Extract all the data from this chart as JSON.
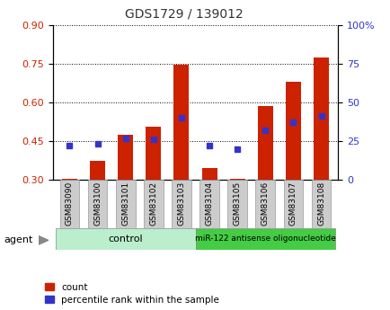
{
  "title": "GDS1729 / 139012",
  "categories": [
    "GSM83090",
    "GSM83100",
    "GSM83101",
    "GSM83102",
    "GSM83103",
    "GSM83104",
    "GSM83105",
    "GSM83106",
    "GSM83107",
    "GSM83108"
  ],
  "count_values": [
    0.305,
    0.375,
    0.475,
    0.505,
    0.745,
    0.345,
    0.305,
    0.585,
    0.68,
    0.775
  ],
  "percentile_values": [
    22,
    23,
    27,
    26,
    40,
    22,
    20,
    32,
    37,
    41
  ],
  "ylim_left": [
    0.3,
    0.9
  ],
  "ylim_right": [
    0,
    100
  ],
  "yticks_left": [
    0.3,
    0.45,
    0.6,
    0.75,
    0.9
  ],
  "yticks_right": [
    0,
    25,
    50,
    75,
    100
  ],
  "ytick_right_labels": [
    "0",
    "25",
    "50",
    "75",
    "100%"
  ],
  "bar_color": "#cc2200",
  "marker_color": "#3333cc",
  "control_group_span": [
    0,
    4
  ],
  "treatment_group_span": [
    5,
    9
  ],
  "control_label": "control",
  "treatment_label": "miR-122 antisense oligonucleotide",
  "agent_label": "agent",
  "legend_count": "count",
  "legend_percentile": "percentile rank within the sample",
  "bar_width": 0.55,
  "group_box_color_control": "#bbeecc",
  "group_box_color_treatment": "#44cc44",
  "tick_label_color_left": "#cc2200",
  "tick_label_color_right": "#3333cc",
  "title_color": "#333333",
  "xtick_bg_color": "#cccccc",
  "grid_color": "#000000",
  "bar_bottom": 0.3
}
